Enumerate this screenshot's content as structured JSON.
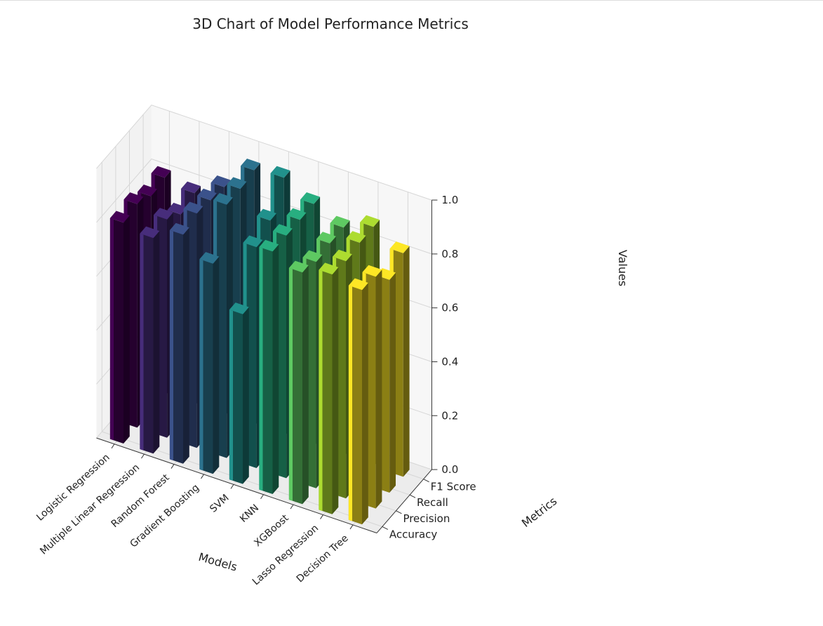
{
  "chart_data": {
    "type": "bar3d",
    "title": "3D Chart of Model Performance Metrics",
    "xlabel": "Models",
    "ylabel": "Metrics",
    "zlabel": "Values",
    "zlim": [
      0,
      1
    ],
    "zticks": [
      "0.0",
      "0.2",
      "0.4",
      "0.6",
      "0.8",
      "1.0"
    ],
    "models": [
      "Logistic Regression",
      "Multiple Linear Regression",
      "Random Forest",
      "Gradient Boosting",
      "SVM",
      "KNN",
      "XGBoost",
      "Lasso Regression",
      "Decision Tree"
    ],
    "metrics": [
      "Accuracy",
      "Precision",
      "Recall",
      "F1 Score"
    ],
    "series": [
      {
        "name": "Accuracy",
        "values": [
          0.82,
          0.8,
          0.85,
          0.78,
          0.63,
          0.9,
          0.86,
          0.89,
          0.87
        ]
      },
      {
        "name": "Precision",
        "values": [
          0.83,
          0.81,
          0.87,
          0.94,
          0.82,
          0.9,
          0.84,
          0.88,
          0.86
        ]
      },
      {
        "name": "Recall",
        "values": [
          0.8,
          0.77,
          0.86,
          0.94,
          0.86,
          0.9,
          0.85,
          0.89,
          0.79
        ]
      },
      {
        "name": "F1 Score",
        "values": [
          0.81,
          0.79,
          0.85,
          0.95,
          0.96,
          0.9,
          0.85,
          0.89,
          0.83
        ]
      }
    ],
    "colors": [
      "#440154",
      "#472d7b",
      "#3b528b",
      "#2c728e",
      "#21918c",
      "#28ae80",
      "#5ec962",
      "#addc30",
      "#fde725"
    ],
    "grid": true
  }
}
